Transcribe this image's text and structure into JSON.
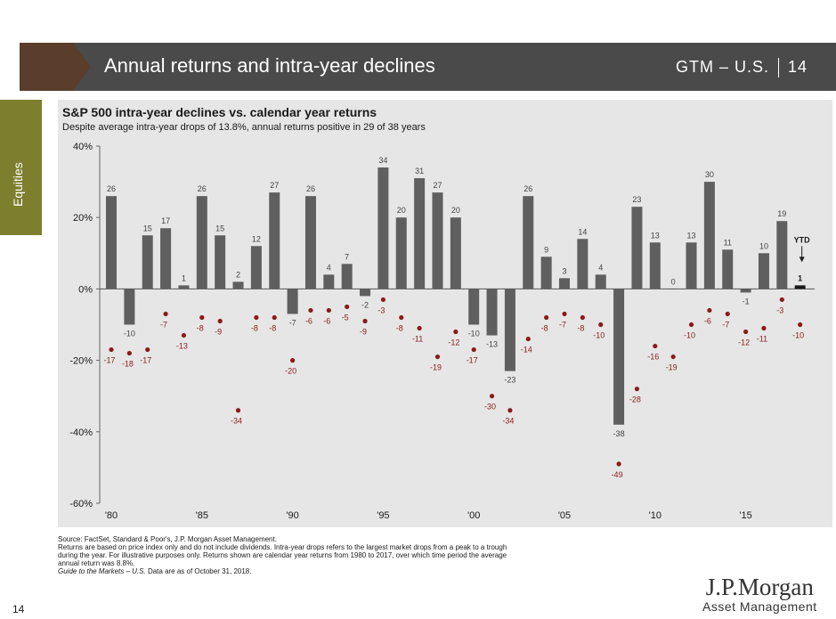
{
  "header": {
    "title": "Annual returns and intra-year declines",
    "section": "GTM – U.S.",
    "page": "14"
  },
  "sidebar": {
    "label": "Equities"
  },
  "colors": {
    "bar": "#5f5f5f",
    "ytd_bar": "#1a1a1a",
    "decline": "#8b1a1a",
    "banner": "#4a4a4a",
    "banner_accent": "#5a3d2b",
    "side_tab": "#7d7f2e",
    "chart_bg": "#e6e6e6"
  },
  "chart_data": {
    "type": "bar",
    "title": "S&P 500 intra-year declines vs. calendar year returns",
    "subtitle": "Despite average intra-year drops of 13.8%, annual returns positive in 29 of 38 years",
    "ylim": [
      -60,
      40
    ],
    "yticks": [
      -60,
      -40,
      -20,
      0,
      20,
      40
    ],
    "ytick_labels": [
      "-60%",
      "-40%",
      "-20%",
      "0%",
      "20%",
      "40%"
    ],
    "xticks": [
      1980,
      1985,
      1990,
      1995,
      2000,
      2005,
      2010,
      2015
    ],
    "xtick_labels": [
      "'80",
      "'85",
      "'90",
      "'95",
      "'00",
      "'05",
      "'10",
      "'15"
    ],
    "years": [
      1980,
      1981,
      1982,
      1983,
      1984,
      1985,
      1986,
      1987,
      1988,
      1989,
      1990,
      1991,
      1992,
      1993,
      1994,
      1995,
      1996,
      1997,
      1998,
      1999,
      2000,
      2001,
      2002,
      2003,
      2004,
      2005,
      2006,
      2007,
      2008,
      2009,
      2010,
      2011,
      2012,
      2013,
      2014,
      2015,
      2016,
      2017,
      2018
    ],
    "annual_returns": [
      26,
      -10,
      15,
      17,
      1,
      26,
      15,
      2,
      12,
      27,
      -7,
      26,
      4,
      7,
      -2,
      34,
      20,
      31,
      27,
      20,
      -10,
      -13,
      -23,
      26,
      9,
      3,
      14,
      4,
      -38,
      23,
      13,
      0,
      13,
      30,
      11,
      -1,
      10,
      19,
      1
    ],
    "intra_year_declines": [
      -17,
      -18,
      -17,
      -7,
      -13,
      -8,
      -9,
      -34,
      -8,
      -8,
      -20,
      -6,
      -6,
      -5,
      -9,
      -3,
      -8,
      -11,
      -19,
      -12,
      -17,
      -30,
      -34,
      -14,
      -8,
      -7,
      -8,
      -10,
      -49,
      -28,
      -16,
      -19,
      -10,
      -6,
      -7,
      -12,
      -11,
      -3,
      -10
    ],
    "ytd_label": "YTD",
    "ytd_index": 38,
    "grid": false
  },
  "footnotes": {
    "source": "Source: FactSet, Standard & Poor's, J.P. Morgan Asset Management.",
    "line1": "Returns are based on price index only and do not include dividends. Intra-year drops refers to the largest market drops from a peak to a trough",
    "line2": "during the year. For illustrative purposes only. Returns shown are calendar year returns from 1980 to 2017, over which time period the average",
    "line3": "annual return was 8.8%.",
    "guide_italic": "Guide to the Markets – U.S.",
    "guide_rest": " Data are as of October 31, 2018."
  },
  "page_number": "14",
  "logo": {
    "name": "J.P.Morgan",
    "sub": "Asset Management"
  }
}
